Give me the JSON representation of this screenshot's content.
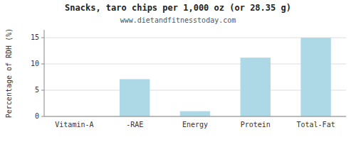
{
  "chart_data": {
    "type": "bar",
    "title": "Snacks, taro chips per 1,000 oz (or 28.35 g)",
    "subtitle": "www.dietandfitnesstoday.com",
    "categories": [
      "Vitamin-A",
      "-RAE",
      "Energy",
      "Protein",
      "Total-Fat"
    ],
    "values": [
      0,
      7.1,
      1.0,
      11.2,
      15.0
    ],
    "color": "#add8e6",
    "ylabel": "Percentage of RDH (%)",
    "ylim": [
      0,
      16.5
    ],
    "yticks": [
      0,
      5,
      10,
      15
    ],
    "grid": true
  }
}
